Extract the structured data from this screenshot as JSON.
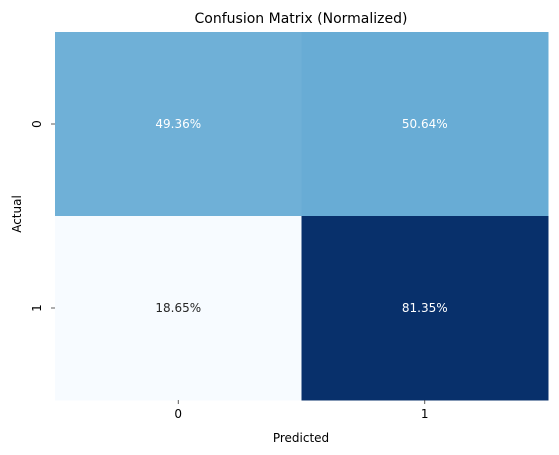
{
  "chart_data": {
    "type": "heatmap",
    "title": "Confusion Matrix (Normalized)",
    "xlabel": "Predicted",
    "ylabel": "Actual",
    "x_categories": [
      "0",
      "1"
    ],
    "y_categories": [
      "0",
      "1"
    ],
    "values": [
      [
        0.4936,
        0.5064
      ],
      [
        0.1865,
        0.8135
      ]
    ],
    "cell_labels": [
      [
        "49.36%",
        "50.64%"
      ],
      [
        "18.65%",
        "81.35%"
      ]
    ],
    "colormap": "Blues",
    "color_range": [
      0.1865,
      0.8135
    ],
    "colorbar": false,
    "grid": false
  }
}
